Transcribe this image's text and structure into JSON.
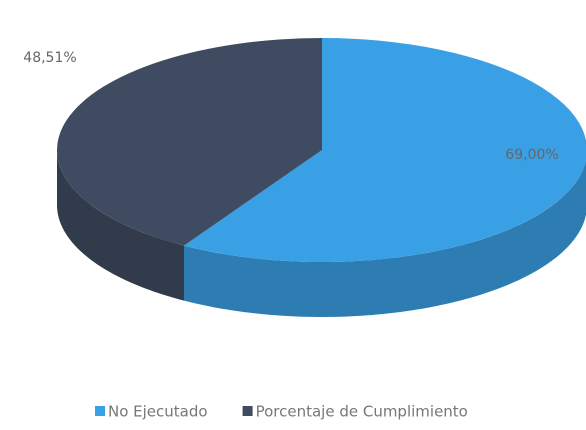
{
  "chart_data": {
    "type": "pie3d",
    "series": [
      {
        "name": "No Ejecutado",
        "color": "#3aa0e6",
        "values": [
          69
        ],
        "value_labels": [
          "69,00%"
        ]
      },
      {
        "name": "Porcentaje de Cumplimiento",
        "color": "#3f4b60",
        "values": [
          48.51
        ],
        "value_labels": [
          "48,51%"
        ]
      }
    ],
    "legend": "bottom"
  }
}
